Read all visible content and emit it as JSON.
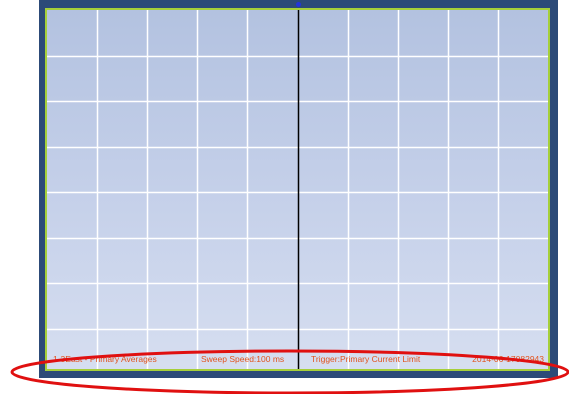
{
  "colors": {
    "frame": "#2c4a78",
    "screen_border": "#a6cf3a",
    "grid_line": "#ffffff",
    "cursor_line": "#000000",
    "status_text": "#e2541f",
    "highlight_ellipse": "#e01010"
  },
  "grid": {
    "columns": 10,
    "rows": 7,
    "cursor_column_boundary": 5
  },
  "status_bar": {
    "channel": "1-3East - Primary Averages",
    "sweep_speed": "Sweep Speed:100 ms",
    "trigger": "Trigger:Primary Current Limit",
    "timestamp": "2014-06-17082943"
  }
}
